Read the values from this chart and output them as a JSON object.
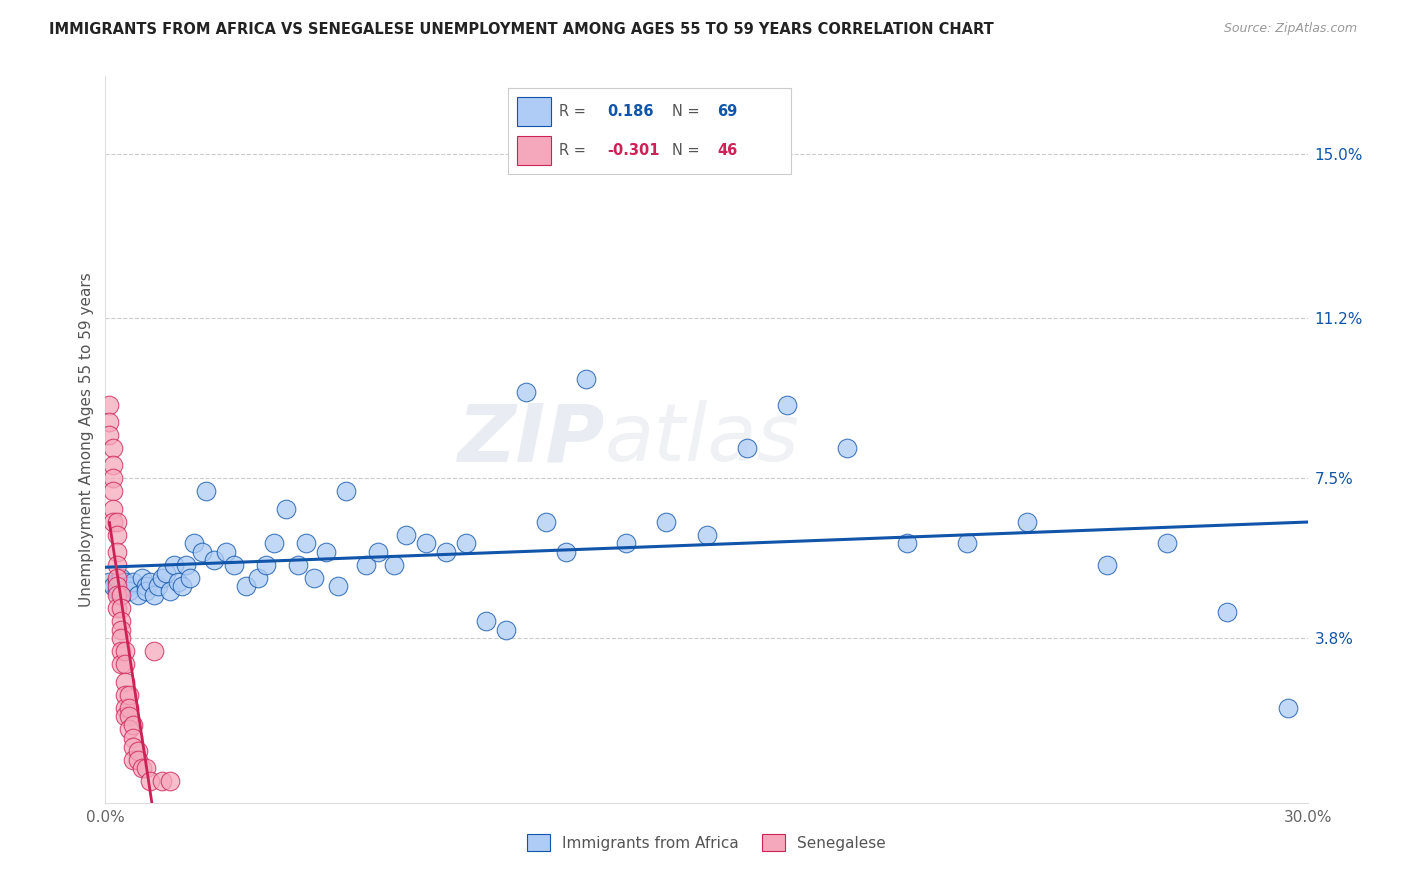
{
  "title": "IMMIGRANTS FROM AFRICA VS SENEGALESE UNEMPLOYMENT AMONG AGES 55 TO 59 YEARS CORRELATION CHART",
  "source": "Source: ZipAtlas.com",
  "ylabel": "Unemployment Among Ages 55 to 59 years",
  "xlim": [
    0,
    0.3
  ],
  "ylim": [
    0,
    0.168
  ],
  "xtick_positions": [
    0.0,
    0.05,
    0.1,
    0.15,
    0.2,
    0.25,
    0.3
  ],
  "xticklabels": [
    "0.0%",
    "",
    "",
    "",
    "",
    "",
    "30.0%"
  ],
  "ytick_positions": [
    0.038,
    0.075,
    0.112,
    0.15
  ],
  "ytick_labels": [
    "3.8%",
    "7.5%",
    "11.2%",
    "15.0%"
  ],
  "blue_R": 0.186,
  "blue_N": 69,
  "pink_R": -0.301,
  "pink_N": 46,
  "blue_color": "#aeccf5",
  "pink_color": "#f5a8bb",
  "blue_line_color": "#1155aa",
  "pink_line_color": "#cc2255",
  "pink_dash_color": "#ccccdd",
  "watermark_zip": "ZIP",
  "watermark_atlas": "atlas",
  "blue_scatter_x": [
    0.001,
    0.002,
    0.003,
    0.003,
    0.004,
    0.004,
    0.005,
    0.005,
    0.006,
    0.006,
    0.007,
    0.008,
    0.009,
    0.01,
    0.01,
    0.011,
    0.012,
    0.013,
    0.014,
    0.015,
    0.016,
    0.017,
    0.018,
    0.019,
    0.02,
    0.021,
    0.022,
    0.024,
    0.025,
    0.027,
    0.03,
    0.032,
    0.035,
    0.038,
    0.04,
    0.042,
    0.045,
    0.048,
    0.05,
    0.052,
    0.055,
    0.058,
    0.06,
    0.065,
    0.068,
    0.072,
    0.075,
    0.08,
    0.085,
    0.09,
    0.095,
    0.1,
    0.105,
    0.11,
    0.115,
    0.12,
    0.13,
    0.14,
    0.15,
    0.16,
    0.17,
    0.185,
    0.2,
    0.215,
    0.23,
    0.25,
    0.265,
    0.28,
    0.295
  ],
  "blue_scatter_y": [
    0.051,
    0.05,
    0.051,
    0.049,
    0.052,
    0.048,
    0.05,
    0.051,
    0.05,
    0.049,
    0.051,
    0.048,
    0.052,
    0.05,
    0.049,
    0.051,
    0.048,
    0.05,
    0.052,
    0.053,
    0.049,
    0.055,
    0.051,
    0.05,
    0.055,
    0.052,
    0.06,
    0.058,
    0.072,
    0.056,
    0.058,
    0.055,
    0.05,
    0.052,
    0.055,
    0.06,
    0.068,
    0.055,
    0.06,
    0.052,
    0.058,
    0.05,
    0.072,
    0.055,
    0.058,
    0.055,
    0.062,
    0.06,
    0.058,
    0.06,
    0.042,
    0.04,
    0.095,
    0.065,
    0.058,
    0.098,
    0.06,
    0.065,
    0.062,
    0.082,
    0.092,
    0.082,
    0.06,
    0.06,
    0.065,
    0.055,
    0.06,
    0.044,
    0.022
  ],
  "pink_scatter_x": [
    0.001,
    0.001,
    0.001,
    0.002,
    0.002,
    0.002,
    0.002,
    0.002,
    0.002,
    0.003,
    0.003,
    0.003,
    0.003,
    0.003,
    0.003,
    0.003,
    0.003,
    0.004,
    0.004,
    0.004,
    0.004,
    0.004,
    0.004,
    0.004,
    0.005,
    0.005,
    0.005,
    0.005,
    0.005,
    0.005,
    0.006,
    0.006,
    0.006,
    0.006,
    0.007,
    0.007,
    0.007,
    0.007,
    0.008,
    0.008,
    0.009,
    0.01,
    0.011,
    0.012,
    0.014,
    0.016
  ],
  "pink_scatter_y": [
    0.092,
    0.088,
    0.085,
    0.082,
    0.078,
    0.075,
    0.072,
    0.068,
    0.065,
    0.065,
    0.062,
    0.058,
    0.055,
    0.052,
    0.05,
    0.048,
    0.045,
    0.048,
    0.045,
    0.042,
    0.04,
    0.038,
    0.035,
    0.032,
    0.035,
    0.032,
    0.028,
    0.025,
    0.022,
    0.02,
    0.025,
    0.022,
    0.02,
    0.017,
    0.018,
    0.015,
    0.013,
    0.01,
    0.012,
    0.01,
    0.008,
    0.008,
    0.005,
    0.035,
    0.005,
    0.005
  ]
}
